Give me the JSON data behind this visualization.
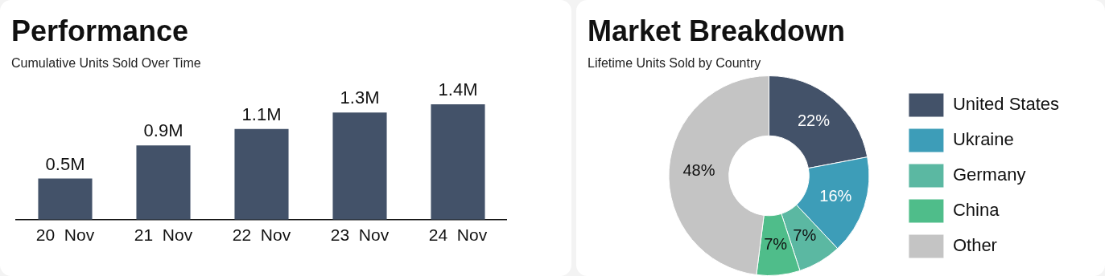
{
  "chart_data": [
    {
      "type": "bar",
      "title": "Performance",
      "subtitle": "Cumulative Units Sold Over Time",
      "categories": [
        "20  Nov",
        "21  Nov",
        "22  Nov",
        "23  Nov",
        "24  Nov"
      ],
      "values": [
        0.5,
        0.9,
        1.1,
        1.3,
        1.4
      ],
      "value_labels": [
        "0.5M",
        "0.9M",
        "1.1M",
        "1.3M",
        "1.4M"
      ],
      "color": "#435269",
      "grid": false,
      "legend": false
    },
    {
      "type": "donut",
      "title": "Market  Breakdown",
      "subtitle": "Lifetime Units Sold by Country",
      "categories": [
        "United States",
        "Ukraine",
        "Germany",
        "China",
        "Other"
      ],
      "values": [
        22,
        16,
        7,
        7,
        48
      ],
      "value_labels": [
        "22%",
        "16%",
        "7%",
        "7%",
        "48%"
      ],
      "colors": [
        "#435269",
        "#3d9db8",
        "#5bb8a2",
        "#4fbd8a",
        "#c4c4c4"
      ],
      "legend": "right"
    }
  ]
}
